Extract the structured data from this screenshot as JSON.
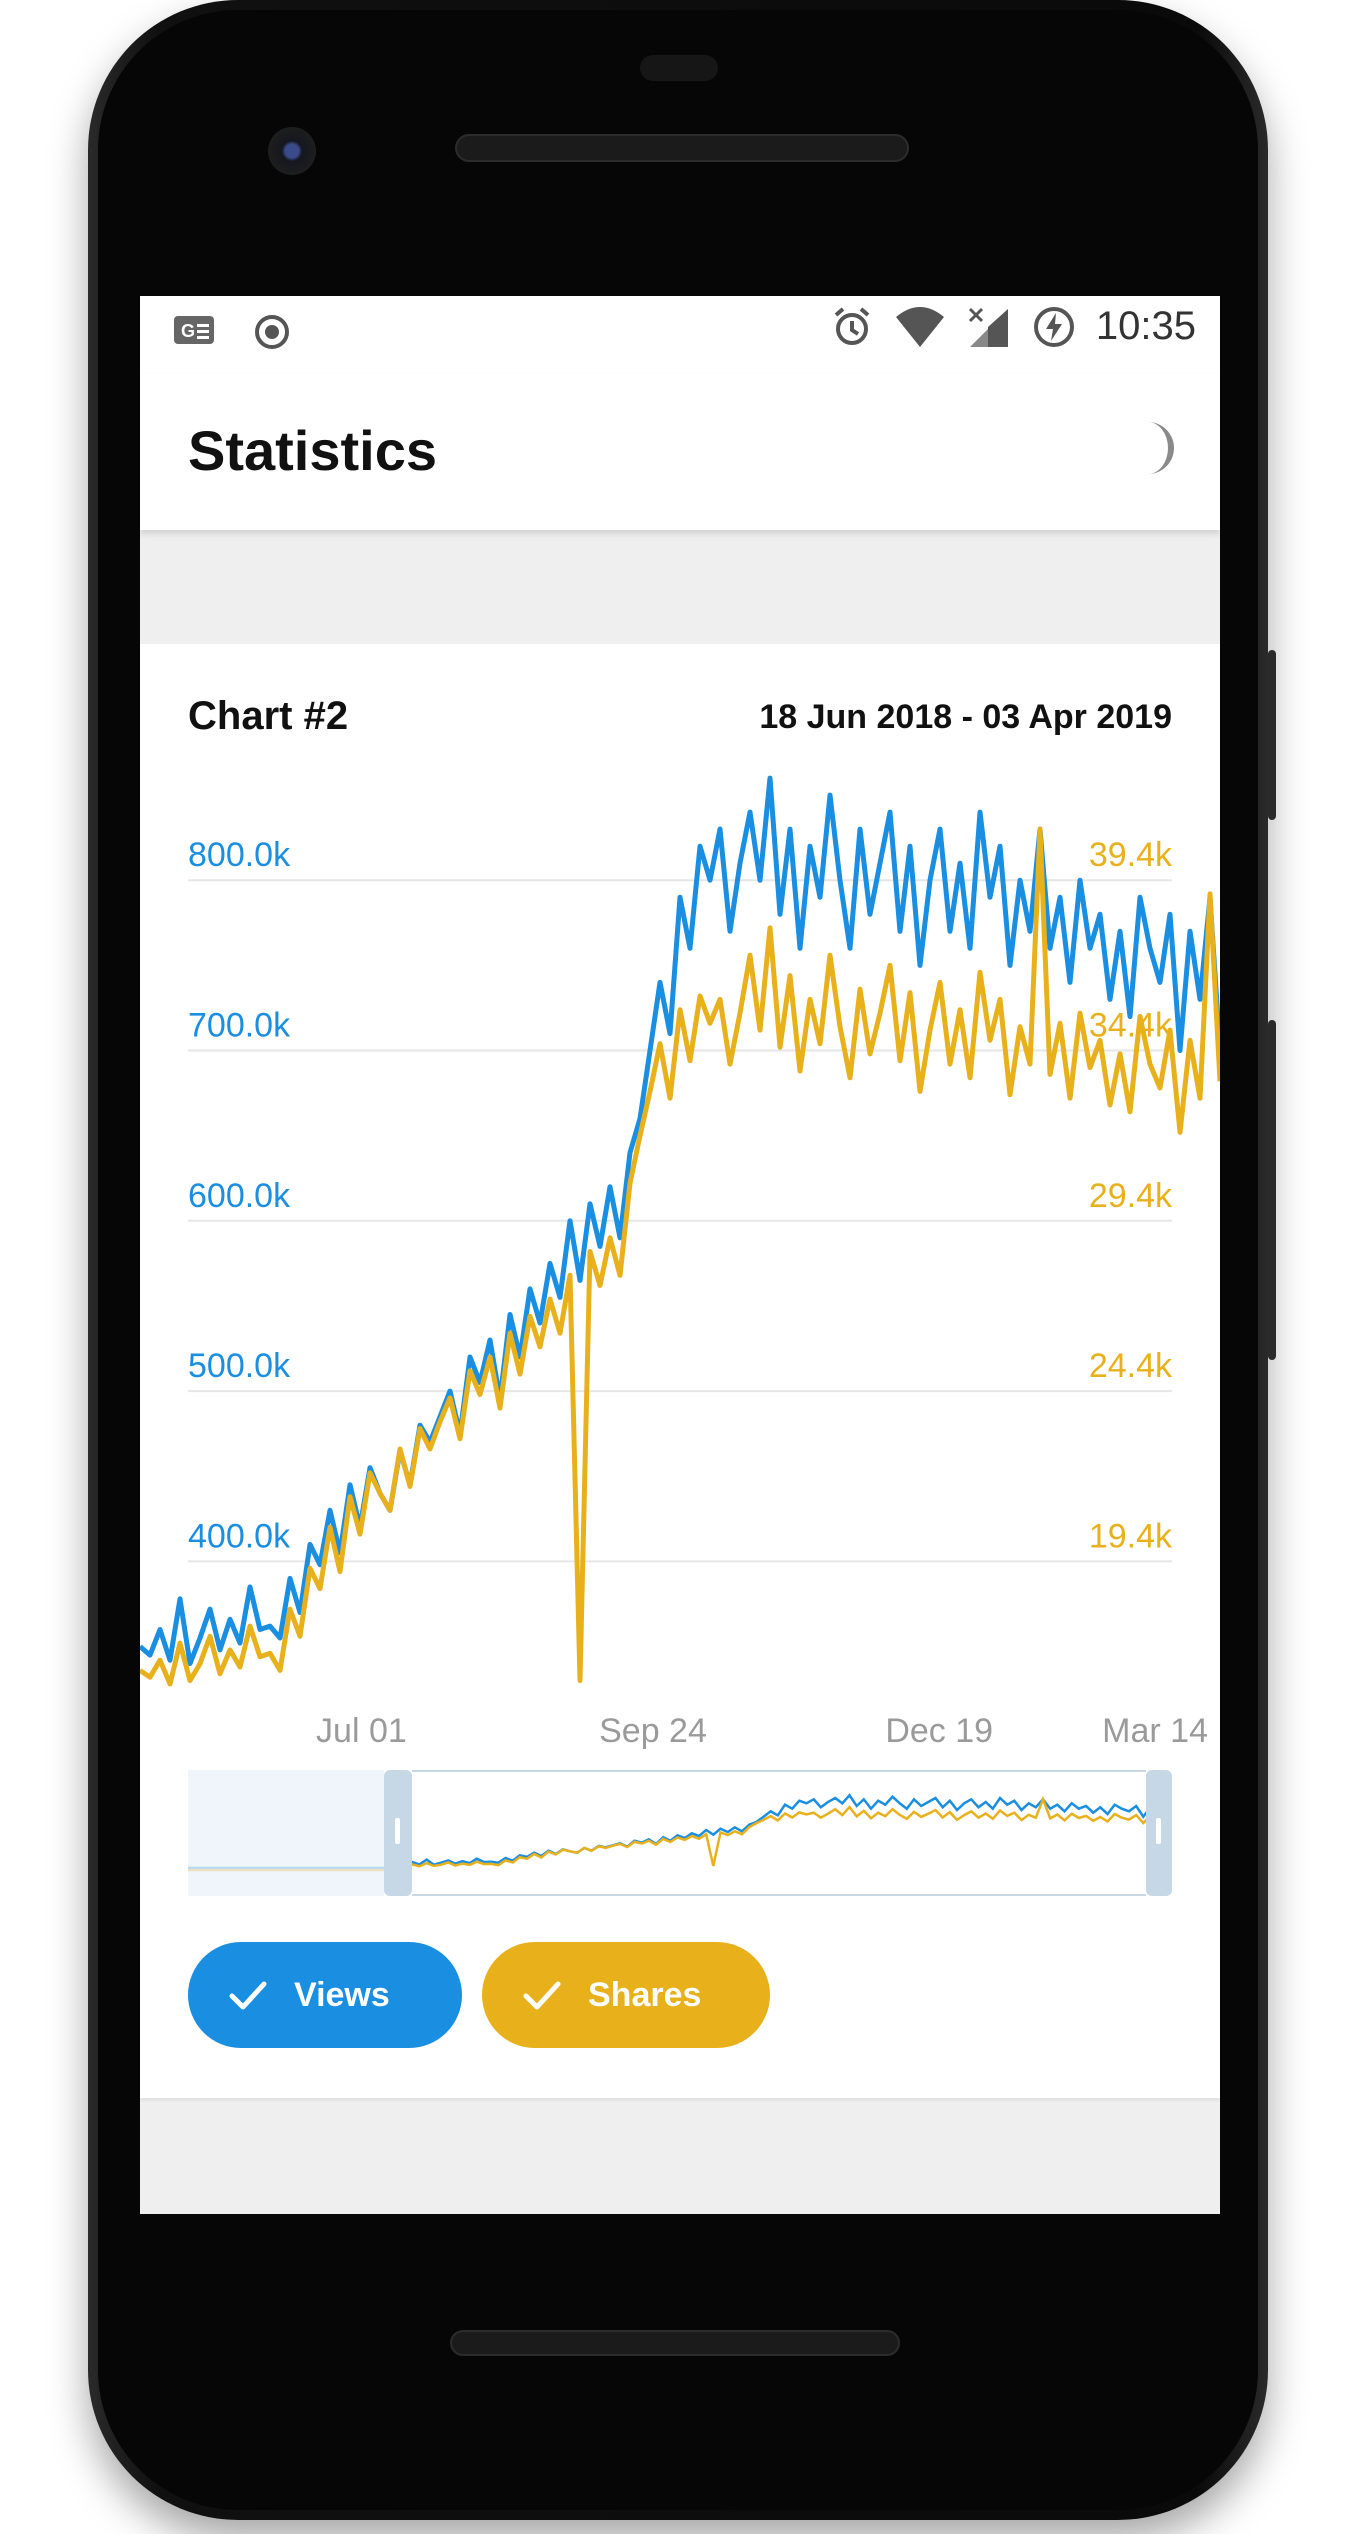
{
  "status_bar": {
    "time": "10:35",
    "icons": [
      "gboard-icon",
      "record-icon",
      "alarm-icon",
      "wifi-icon",
      "no-signal-icon",
      "battery-charging-icon"
    ]
  },
  "app_bar": {
    "title": "Statistics",
    "action_icon": "night-mode-icon"
  },
  "card": {
    "title": "Chart #2",
    "date_range": "18 Jun 2018 - 03 Apr 2019"
  },
  "chart_data": {
    "type": "line",
    "title": "Chart #2",
    "subtitle": "18 Jun 2018 - 03 Apr 2019",
    "x_tick_labels": [
      "Jul 01",
      "Sep 24",
      "Dec 19",
      "Mar 14"
    ],
    "x_range": [
      "2018-06-18",
      "2019-04-03"
    ],
    "y_left": {
      "ticks": [
        "400.0k",
        "500.0k",
        "600.0k",
        "700.0k",
        "800.0k"
      ],
      "tick_values": [
        400000,
        500000,
        600000,
        700000,
        800000
      ],
      "range": [
        328000,
        880000
      ],
      "color": "#1a8ee1"
    },
    "y_right": {
      "ticks": [
        "19.4k",
        "24.4k",
        "29.4k",
        "34.4k",
        "39.4k"
      ],
      "tick_values": [
        19400,
        24400,
        29400,
        34400,
        39400
      ],
      "color": "#e8b11b"
    },
    "grid": true,
    "visible_window": [
      "2018-06-18",
      "2019-03-23"
    ],
    "series": [
      {
        "name": "Views",
        "color": "#1a8ee1",
        "axis": "left",
        "values": [
          350000,
          345000,
          360000,
          342000,
          378000,
          340000,
          355000,
          372000,
          348000,
          366000,
          352000,
          385000,
          360000,
          362000,
          355000,
          390000,
          370000,
          410000,
          398000,
          430000,
          405000,
          445000,
          420000,
          455000,
          440000,
          430000,
          465000,
          445000,
          480000,
          470000,
          485000,
          500000,
          475000,
          520000,
          505000,
          530000,
          495000,
          545000,
          520000,
          560000,
          540000,
          575000,
          555000,
          600000,
          565000,
          610000,
          585000,
          620000,
          590000,
          640000,
          660000,
          700000,
          740000,
          710000,
          790000,
          760000,
          820000,
          800000,
          830000,
          770000,
          810000,
          840000,
          800000,
          860000,
          780000,
          830000,
          760000,
          820000,
          790000,
          850000,
          800000,
          760000,
          830000,
          780000,
          810000,
          840000,
          770000,
          820000,
          750000,
          800000,
          830000,
          770000,
          810000,
          760000,
          840000,
          790000,
          820000,
          750000,
          800000,
          770000,
          830000,
          760000,
          790000,
          740000,
          800000,
          760000,
          780000,
          730000,
          770000,
          720000,
          790000,
          760000,
          740000,
          780000,
          700000,
          770000,
          730000,
          790000,
          700000
        ]
      },
      {
        "name": "Shares",
        "color": "#e8b11b",
        "axis": "right",
        "values": [
          16200,
          16000,
          16500,
          15800,
          17000,
          15900,
          16400,
          17200,
          16100,
          16800,
          16300,
          17500,
          16600,
          16700,
          16200,
          18000,
          17200,
          19200,
          18600,
          20400,
          19100,
          21300,
          20200,
          22000,
          21400,
          20900,
          22700,
          21600,
          23300,
          22700,
          23500,
          24200,
          23000,
          25000,
          24300,
          25400,
          23900,
          26100,
          24900,
          26600,
          25700,
          27100,
          26100,
          27800,
          15900,
          28500,
          27500,
          28900,
          27800,
          30500,
          31900,
          33200,
          34600,
          33000,
          35600,
          34100,
          36000,
          35200,
          35900,
          34000,
          35500,
          37200,
          35000,
          38000,
          34500,
          36600,
          33800,
          35900,
          34600,
          37200,
          35100,
          33600,
          36200,
          34300,
          35500,
          36900,
          34100,
          36100,
          33200,
          35000,
          36400,
          34000,
          35600,
          33600,
          36700,
          34700,
          35900,
          33100,
          35100,
          34000,
          40900,
          33700,
          35200,
          33000,
          35500,
          33900,
          34700,
          32800,
          34300,
          32600,
          35400,
          34000,
          33300,
          35000,
          32000,
          34700,
          33000,
          39000,
          33500
        ]
      }
    ],
    "legend_toggles": [
      "Views",
      "Shares"
    ]
  },
  "toggles": {
    "views_label": "Views",
    "shares_label": "Shares"
  },
  "colors": {
    "views": "#1a8ee1",
    "shares": "#e8b11b",
    "grid": "#e6e6e6",
    "axis_text": "#9a9a9a",
    "selector_border": "#c6d7e6",
    "selector_overlay": "#eaf2fa"
  }
}
